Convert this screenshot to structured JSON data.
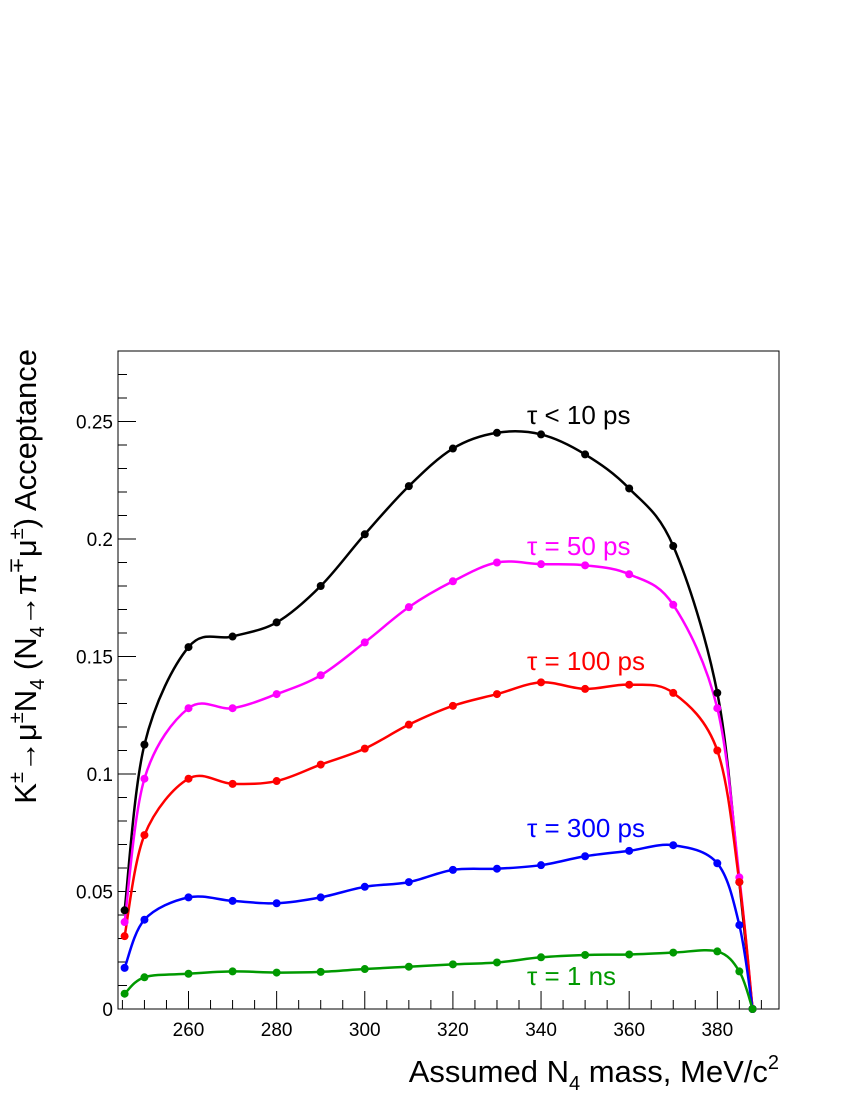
{
  "chart_data": {
    "type": "line",
    "title": "",
    "xlabel": {
      "main": "Assumed N",
      "sub": "4",
      "rest": " mass, MeV/c",
      "sup": "2"
    },
    "ylabel": {
      "p1": "K",
      "p1_sup": "±",
      "p2": "→μ",
      "p2_sup": "±",
      "p3": "N",
      "p3_sub": "4",
      "p4": " (N",
      "p4_sub": "4",
      "p5": "→π",
      "p5_sup": "∓",
      "p6": "μ",
      "p6_sup": "±",
      "p7": ") Acceptance"
    },
    "xlim": [
      244,
      394
    ],
    "ylim": [
      0,
      0.28
    ],
    "x_ticks": [
      260,
      280,
      300,
      320,
      340,
      360,
      380
    ],
    "x_tick_labels": [
      "260",
      "280",
      "300",
      "320",
      "340",
      "360",
      "380"
    ],
    "y_ticks": [
      0,
      0.05,
      0.1,
      0.15,
      0.2,
      0.25
    ],
    "y_tick_labels": [
      "0",
      "0.05",
      "0.1",
      "0.15",
      "0.2",
      "0.25"
    ],
    "grid": false,
    "x": [
      245.5,
      250,
      260,
      270,
      280,
      290,
      300,
      310,
      320,
      330,
      340,
      350,
      360,
      370,
      380,
      385,
      388
    ],
    "series": [
      {
        "name": "τ < 10 ps",
        "color": "#000000",
        "values": [
          0.042,
          0.1125,
          0.154,
          0.1585,
          0.1645,
          0.18,
          0.202,
          0.2225,
          0.2385,
          0.2452,
          0.2445,
          0.236,
          0.2215,
          0.197,
          0.1345,
          0.054,
          0.0
        ]
      },
      {
        "name": "τ = 50 ps",
        "color": "#ff00ff",
        "values": [
          0.037,
          0.098,
          0.128,
          0.128,
          0.134,
          0.142,
          0.156,
          0.171,
          0.182,
          0.19,
          0.1893,
          0.1888,
          0.185,
          0.172,
          0.128,
          0.056,
          0.0
        ]
      },
      {
        "name": "τ = 100 ps",
        "color": "#ff0000",
        "values": [
          0.031,
          0.074,
          0.098,
          0.0958,
          0.097,
          0.104,
          0.1108,
          0.121,
          0.129,
          0.134,
          0.139,
          0.1362,
          0.138,
          0.1345,
          0.11,
          0.054,
          0.0
        ]
      },
      {
        "name": "τ = 300 ps",
        "color": "#0000ff",
        "values": [
          0.0175,
          0.038,
          0.0475,
          0.046,
          0.045,
          0.0475,
          0.052,
          0.054,
          0.0592,
          0.0597,
          0.0612,
          0.065,
          0.0673,
          0.0697,
          0.062,
          0.0357,
          0.0
        ]
      },
      {
        "name": "τ = 1 ns",
        "color": "#009900",
        "values": [
          0.0065,
          0.0135,
          0.015,
          0.016,
          0.0155,
          0.0158,
          0.017,
          0.018,
          0.019,
          0.0198,
          0.022,
          0.023,
          0.0232,
          0.024,
          0.0245,
          0.016,
          0.0
        ]
      }
    ]
  }
}
